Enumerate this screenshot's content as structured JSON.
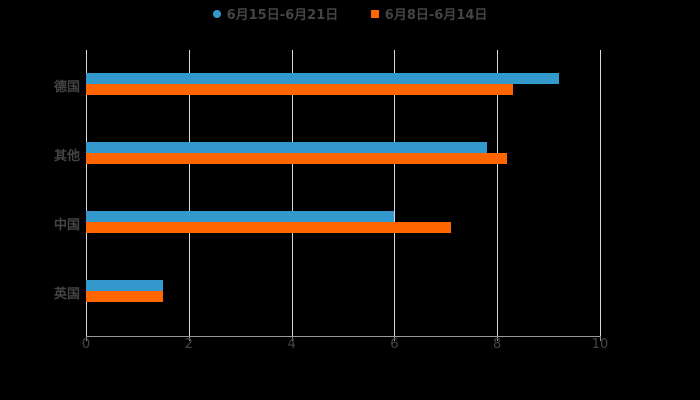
{
  "chart_data": {
    "type": "bar",
    "orientation": "horizontal",
    "title": "",
    "xlabel": "",
    "ylabel": "",
    "categories": [
      "德国",
      "其他",
      "中国",
      "英国"
    ],
    "series": [
      {
        "name": "6月15日-6月21日",
        "color": "#3399cc",
        "values": [
          9.2,
          7.8,
          6.0,
          1.5
        ]
      },
      {
        "name": "6月8日-6月14日",
        "color": "#ff6600",
        "values": [
          8.3,
          8.2,
          7.1,
          1.5
        ]
      }
    ],
    "xlim": [
      0,
      10
    ],
    "xticks": [
      "0",
      "2",
      "4",
      "6",
      "8",
      "10"
    ],
    "grid": true,
    "legend_position": "top"
  },
  "legend": {
    "items": [
      {
        "label": "6月15日-6月21日",
        "color": "#3399cc"
      },
      {
        "label": "6月8日-6月14日",
        "color": "#ff6600"
      }
    ]
  }
}
